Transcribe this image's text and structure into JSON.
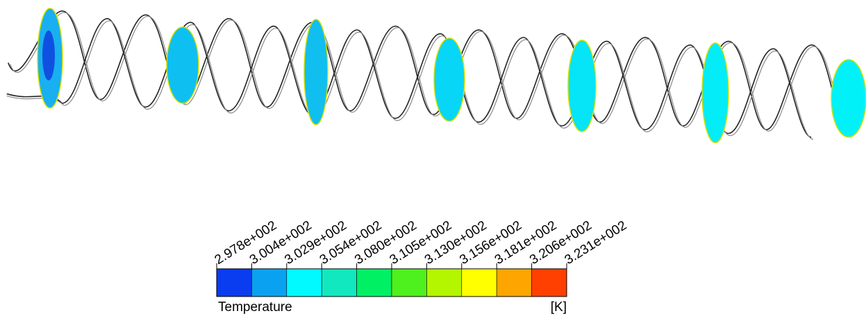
{
  "legend": {
    "title": "Temperature",
    "unit": "[K]",
    "ticks": [
      "2.978e+002",
      "3.004e+002",
      "3.029e+002",
      "3.054e+002",
      "3.080e+002",
      "3.105e+002",
      "3.130e+002",
      "3.156e+002",
      "3.181e+002",
      "3.206e+002",
      "3.231e+002"
    ],
    "colors": [
      "#0a3cf0",
      "#0aa2f0",
      "#00faff",
      "#12e8bf",
      "#00f064",
      "#4ef01e",
      "#b4f500",
      "#ffff00",
      "#ffa500",
      "#ff4000"
    ]
  }
}
